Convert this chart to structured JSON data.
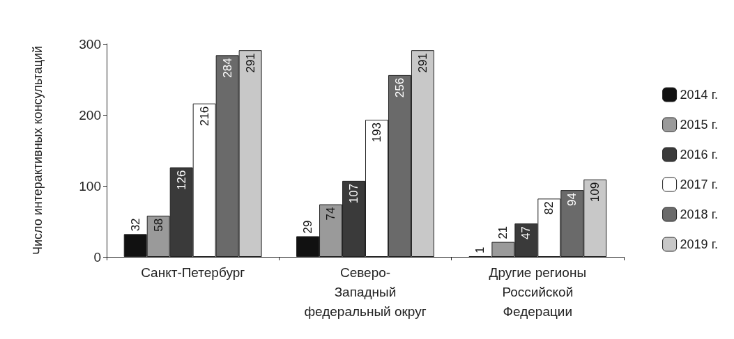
{
  "chart_data": {
    "type": "bar",
    "ylabel": "Число интерактивных консультаций",
    "categories": [
      "Санкт-Петербург",
      "Северо-\nЗападный\nфедеральный округ",
      "Другие регионы\nРоссийской\nФедерации"
    ],
    "series": [
      {
        "name": "2014 г.",
        "color": "#111111",
        "values": [
          32,
          29,
          1
        ]
      },
      {
        "name": "2015 г.",
        "color": "#9a9a9a",
        "values": [
          58,
          74,
          21
        ]
      },
      {
        "name": "2016 г.",
        "color": "#3a3a3a",
        "values": [
          126,
          107,
          47
        ]
      },
      {
        "name": "2017 г.",
        "color": "#ffffff",
        "values": [
          216,
          193,
          82
        ]
      },
      {
        "name": "2018 г.",
        "color": "#6a6a6a",
        "values": [
          284,
          256,
          94
        ]
      },
      {
        "name": "2019 г.",
        "color": "#c8c8c8",
        "values": [
          291,
          291,
          109
        ]
      }
    ],
    "ylim": [
      0,
      300
    ],
    "yticks": [
      0,
      100,
      200,
      300
    ],
    "grid": false,
    "legend": "right",
    "data_labels": true
  }
}
